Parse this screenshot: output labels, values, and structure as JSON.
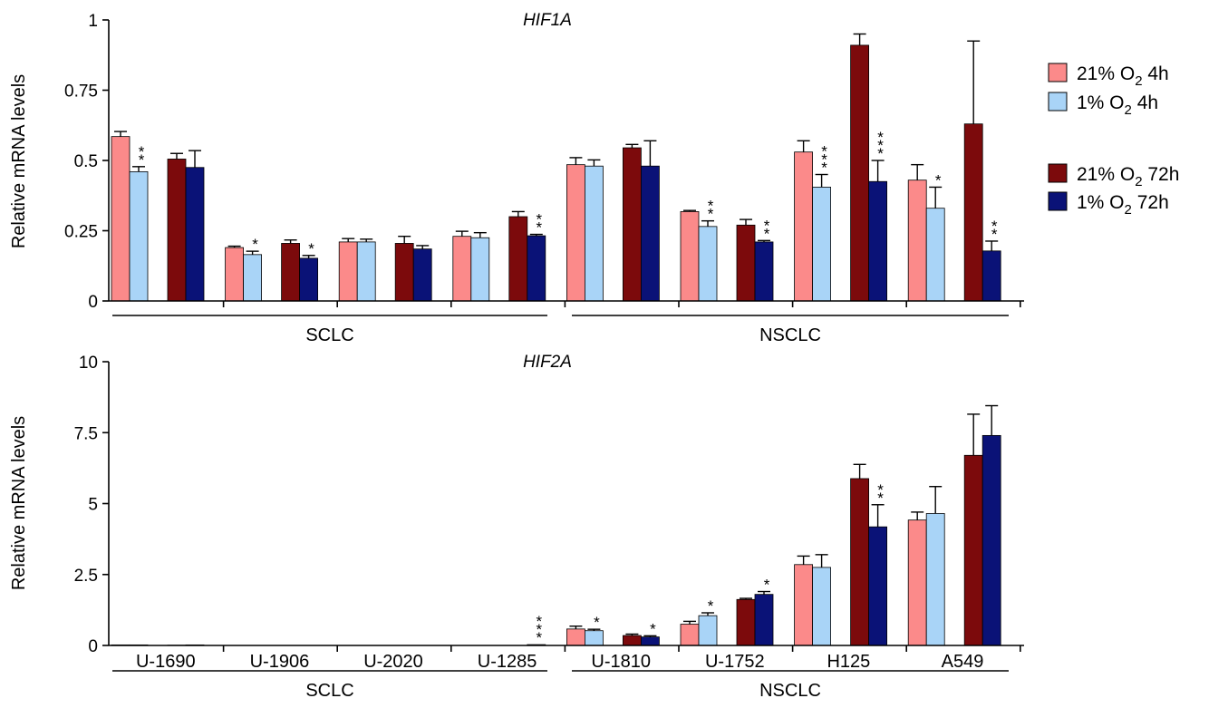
{
  "colors": {
    "s21_4h": "#fb8a8a",
    "s1_4h": "#a9d4f7",
    "s21_72h": "#7c0a0c",
    "s1_72h": "#0a1277"
  },
  "legend": {
    "entries": [
      {
        "key": "s21_4h",
        "pre": "21% O",
        "sub": "2",
        "post": " 4h"
      },
      {
        "key": "s1_4h",
        "pre": "1% O",
        "sub": "2",
        "post": " 4h"
      },
      {
        "key": "s21_72h",
        "pre": "21% O",
        "sub": "2",
        "post": " 72h"
      },
      {
        "key": "s1_72h",
        "pre": "1% O",
        "sub": "2",
        "post": " 72h"
      }
    ]
  },
  "chart_data": [
    {
      "type": "bar",
      "title": "HIF1A",
      "ylabel": "Relative mRNA levels",
      "ylim": [
        0,
        1
      ],
      "yticks": [
        "0",
        "0.25",
        "0.5",
        "0.75",
        "1"
      ],
      "ytick_values": [
        0,
        0.25,
        0.5,
        0.75,
        1
      ],
      "series_names": [
        "21% O2 4h",
        "1% O2 4h",
        "21% O2 72h",
        "1% O2 72h"
      ],
      "categories": [
        "U-1690",
        "U-1906",
        "U-2020",
        "U-1285",
        "U-1810",
        "U-1752",
        "H125",
        "A549"
      ],
      "show_category_labels": false,
      "groups": [
        {
          "label": "SCLC",
          "categories": [
            "U-1690",
            "U-1906",
            "U-2020",
            "U-1285"
          ]
        },
        {
          "label": "NSCLC",
          "categories": [
            "U-1810",
            "U-1752",
            "H125",
            "A549"
          ]
        }
      ],
      "values": [
        [
          0.585,
          0.46,
          0.505,
          0.475
        ],
        [
          0.19,
          0.165,
          0.205,
          0.152
        ],
        [
          0.21,
          0.21,
          0.205,
          0.185
        ],
        [
          0.23,
          0.225,
          0.3,
          0.232
        ],
        [
          0.485,
          0.48,
          0.545,
          0.48
        ],
        [
          0.318,
          0.265,
          0.27,
          0.21
        ],
        [
          0.53,
          0.405,
          0.91,
          0.425
        ],
        [
          0.43,
          0.33,
          0.63,
          0.178
        ]
      ],
      "errors": [
        [
          0.018,
          0.018,
          0.02,
          0.06
        ],
        [
          0.005,
          0.012,
          0.012,
          0.01
        ],
        [
          0.012,
          0.01,
          0.025,
          0.012
        ],
        [
          0.018,
          0.018,
          0.018,
          0.005
        ],
        [
          0.025,
          0.022,
          0.012,
          0.09
        ],
        [
          0.004,
          0.02,
          0.02,
          0.005
        ],
        [
          0.04,
          0.045,
          0.04,
          0.075
        ],
        [
          0.055,
          0.075,
          0.295,
          0.035
        ]
      ],
      "stars": [
        [
          "",
          "**",
          "",
          ""
        ],
        [
          "",
          "*",
          "",
          "*"
        ],
        [
          "",
          "",
          "",
          ""
        ],
        [
          "",
          "",
          "",
          "**"
        ],
        [
          "",
          "",
          "",
          ""
        ],
        [
          "",
          "**",
          "",
          "**"
        ],
        [
          "",
          "***",
          "",
          "***"
        ],
        [
          "",
          "*",
          "",
          "**"
        ]
      ]
    },
    {
      "type": "bar",
      "title": "HIF2A",
      "ylabel": "Relative mRNA levels",
      "ylim": [
        0,
        10
      ],
      "yticks": [
        "0",
        "2.5",
        "5",
        "7.5",
        "10"
      ],
      "ytick_values": [
        0,
        2.5,
        5,
        7.5,
        10
      ],
      "series_names": [
        "21% O2 4h",
        "1% O2 4h",
        "21% O2 72h",
        "1% O2 72h"
      ],
      "categories": [
        "U-1690",
        "U-1906",
        "U-2020",
        "U-1285",
        "U-1810",
        "U-1752",
        "H125",
        "A549"
      ],
      "show_category_labels": true,
      "groups": [
        {
          "label": "SCLC",
          "categories": [
            "U-1690",
            "U-1906",
            "U-2020",
            "U-1285"
          ]
        },
        {
          "label": "NSCLC",
          "categories": [
            "U-1810",
            "U-1752",
            "H125",
            "A549"
          ]
        }
      ],
      "values": [
        [
          0.02,
          0.02,
          0.01,
          0.02
        ],
        [
          0,
          0,
          0,
          0
        ],
        [
          0,
          0,
          0,
          0
        ],
        [
          0,
          0,
          0,
          0.03
        ],
        [
          0.58,
          0.52,
          0.35,
          0.3
        ],
        [
          0.75,
          1.05,
          1.62,
          1.8
        ],
        [
          2.85,
          2.75,
          5.88,
          4.18
        ],
        [
          4.42,
          4.65,
          6.7,
          7.4
        ]
      ],
      "errors": [
        [
          0,
          0,
          0,
          0
        ],
        [
          0,
          0,
          0,
          0
        ],
        [
          0,
          0,
          0,
          0
        ],
        [
          0,
          0,
          0,
          0
        ],
        [
          0.1,
          0.05,
          0.05,
          0.04
        ],
        [
          0.1,
          0.1,
          0.04,
          0.1
        ],
        [
          0.3,
          0.45,
          0.5,
          0.78
        ],
        [
          0.28,
          0.95,
          1.45,
          1.05
        ]
      ],
      "stars": [
        [
          "",
          "",
          "",
          ""
        ],
        [
          "",
          "",
          "",
          ""
        ],
        [
          "",
          "",
          "",
          ""
        ],
        [
          "",
          "",
          "",
          "***"
        ],
        [
          "",
          "*",
          "",
          "*"
        ],
        [
          "",
          "*",
          "",
          "*"
        ],
        [
          "",
          "",
          "",
          "**"
        ],
        [
          "",
          "",
          "",
          ""
        ]
      ]
    }
  ]
}
